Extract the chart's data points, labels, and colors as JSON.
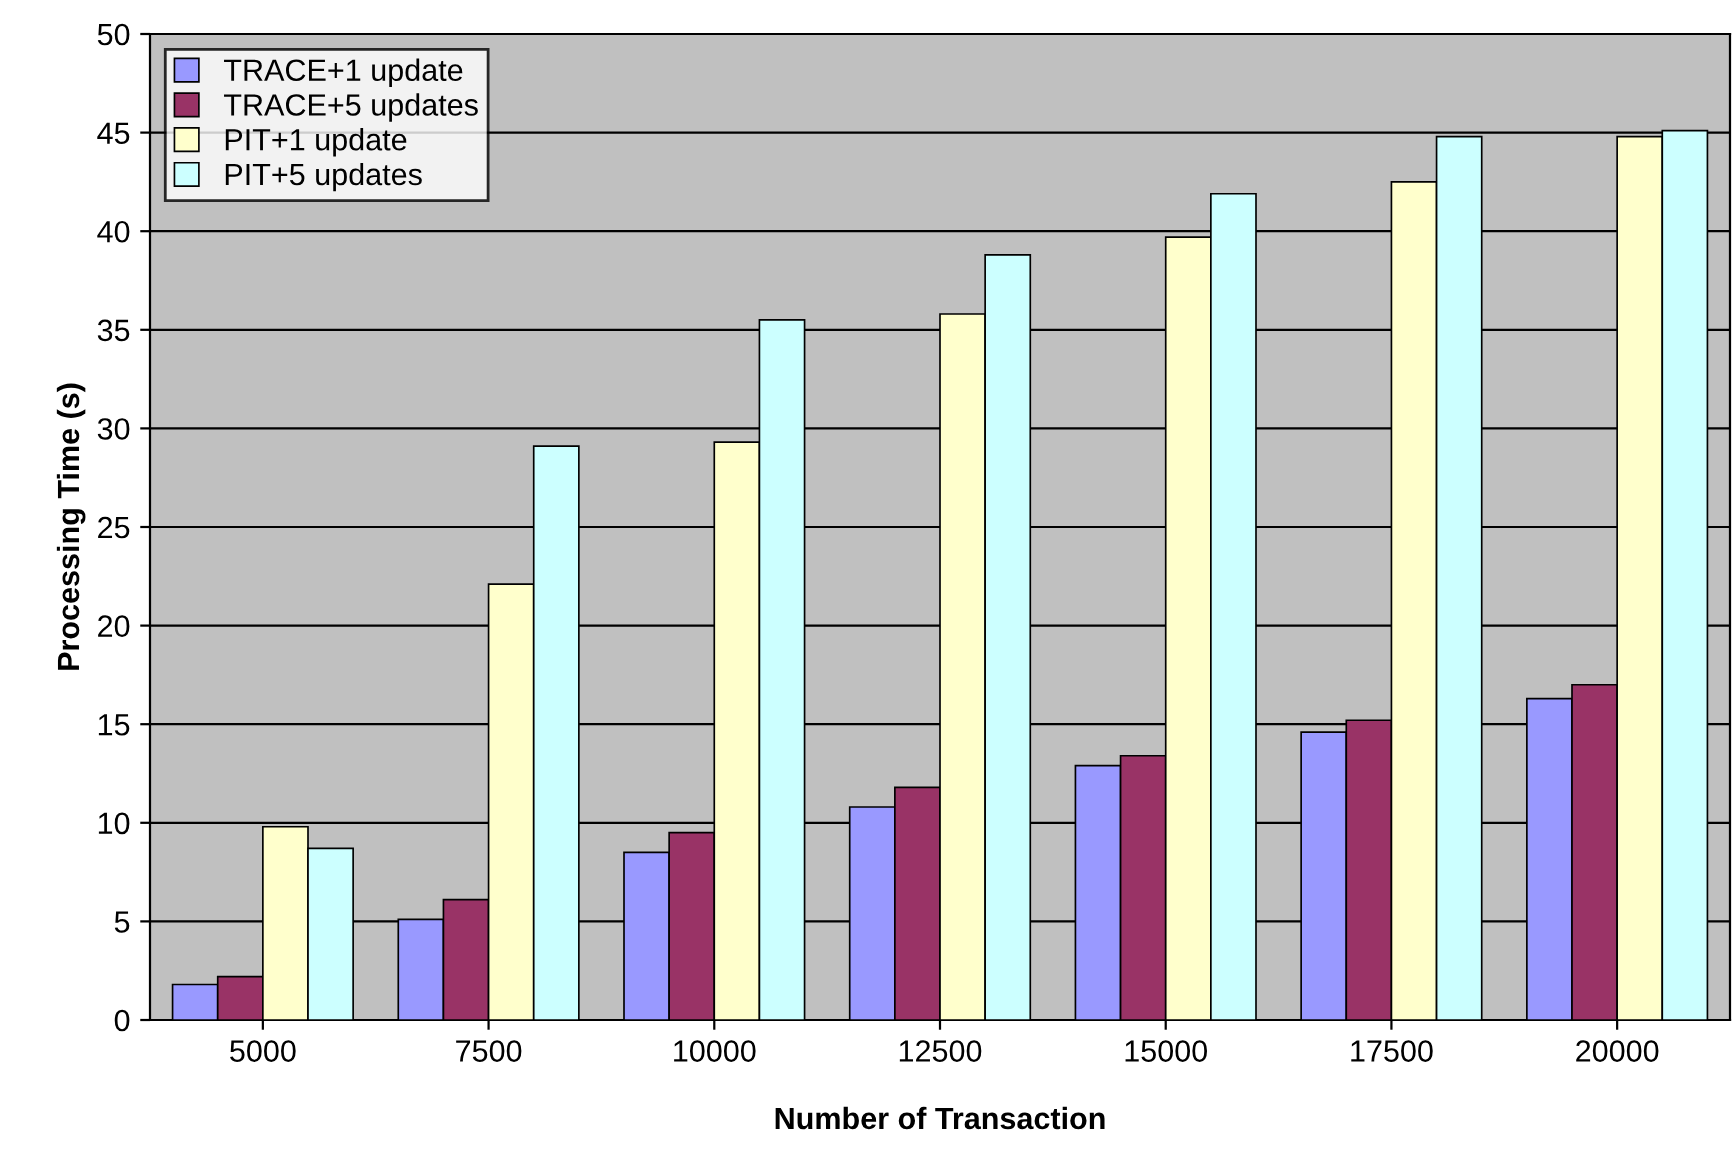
{
  "chart_data": {
    "type": "bar",
    "xlabel": "Number of Transaction",
    "ylabel": "Processing Time (s)",
    "categories": [
      "5000",
      "7500",
      "10000",
      "12500",
      "15000",
      "17500",
      "20000"
    ],
    "series": [
      {
        "name": "TRACE+1 update",
        "color": "#9999ff",
        "values": [
          1.8,
          5.1,
          8.5,
          10.8,
          12.9,
          14.6,
          16.3
        ]
      },
      {
        "name": "TRACE+5 updates",
        "color": "#993366",
        "values": [
          2.2,
          6.1,
          9.5,
          11.8,
          13.4,
          15.2,
          17.0
        ]
      },
      {
        "name": "PIT+1 update",
        "color": "#ffffcc",
        "values": [
          9.8,
          22.1,
          29.3,
          35.8,
          39.7,
          42.5,
          44.8
        ]
      },
      {
        "name": "PIT+5 updates",
        "color": "#ccffff",
        "values": [
          8.7,
          29.1,
          35.5,
          38.8,
          41.9,
          44.8,
          45.1
        ]
      }
    ],
    "ylim": [
      0,
      50
    ],
    "yticks": [
      0,
      5,
      10,
      15,
      20,
      25,
      30,
      35,
      40,
      45,
      50
    ],
    "grid": "y",
    "legend": "top left"
  }
}
